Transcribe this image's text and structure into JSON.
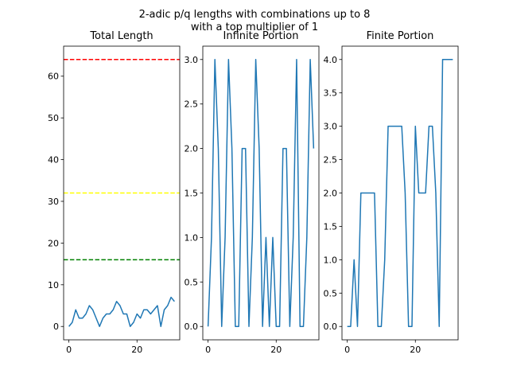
{
  "figure": {
    "title_lines": [
      "2-adic p/q lengths with combinations up to 8",
      "with a top multiplier of 1"
    ]
  },
  "chart_data": [
    {
      "type": "line",
      "title": "Total Length",
      "xlabel": "",
      "ylabel": "",
      "xlim": [
        -1.55,
        32.55
      ],
      "ylim": [
        -3.2,
        67.2
      ],
      "xticks": [
        0,
        20
      ],
      "yticks": [
        0,
        10,
        20,
        30,
        40,
        50,
        60
      ],
      "line_color": "#1f77b4",
      "x": [
        0,
        1,
        2,
        3,
        4,
        5,
        6,
        7,
        8,
        9,
        10,
        11,
        12,
        13,
        14,
        15,
        16,
        17,
        18,
        19,
        20,
        21,
        22,
        23,
        24,
        25,
        26,
        27,
        28,
        29,
        30,
        31
      ],
      "values": [
        0,
        1,
        4,
        2,
        2,
        3,
        5,
        4,
        2,
        0,
        2,
        3,
        3,
        4,
        6,
        5,
        3,
        3,
        0,
        1,
        3,
        2,
        4,
        4,
        3,
        4,
        5,
        0,
        4,
        5,
        7,
        6
      ],
      "hlines": [
        {
          "y": 64,
          "color": "#ff0000",
          "style": "dashed"
        },
        {
          "y": 32,
          "color": "#ffff00",
          "style": "dashed"
        },
        {
          "y": 16,
          "color": "#008000",
          "style": "dashed"
        }
      ],
      "grid": false
    },
    {
      "type": "line",
      "title": "Infinite Portion",
      "xlabel": "",
      "ylabel": "",
      "xlim": [
        -1.55,
        32.55
      ],
      "ylim": [
        -0.15,
        3.15
      ],
      "xticks": [
        0,
        20
      ],
      "yticks": [
        "0.0",
        "0.5",
        "1.0",
        "1.5",
        "2.0",
        "2.5",
        "3.0"
      ],
      "line_color": "#1f77b4",
      "x": [
        0,
        1,
        2,
        3,
        4,
        5,
        6,
        7,
        8,
        9,
        10,
        11,
        12,
        13,
        14,
        15,
        16,
        17,
        18,
        19,
        20,
        21,
        22,
        23,
        24,
        25,
        26,
        27,
        28,
        29,
        30,
        31
      ],
      "values": [
        0,
        1,
        3,
        2,
        0,
        1,
        3,
        2,
        0,
        0,
        2,
        2,
        0,
        1,
        3,
        2,
        0,
        1,
        0,
        1,
        0,
        0,
        2,
        2,
        0,
        1,
        3,
        0,
        0,
        1,
        3,
        2
      ],
      "grid": false
    },
    {
      "type": "line",
      "title": "Finite Portion",
      "xlabel": "",
      "ylabel": "",
      "xlim": [
        -1.55,
        32.55
      ],
      "ylim": [
        -0.2,
        4.2
      ],
      "xticks": [
        0,
        20
      ],
      "yticks": [
        "0.0",
        "0.5",
        "1.0",
        "1.5",
        "2.0",
        "2.5",
        "3.0",
        "3.5",
        "4.0"
      ],
      "line_color": "#1f77b4",
      "x": [
        0,
        1,
        2,
        3,
        4,
        5,
        6,
        7,
        8,
        9,
        10,
        11,
        12,
        13,
        14,
        15,
        16,
        17,
        18,
        19,
        20,
        21,
        22,
        23,
        24,
        25,
        26,
        27,
        28,
        29,
        30,
        31
      ],
      "values": [
        0,
        0,
        1,
        0,
        2,
        2,
        2,
        2,
        2,
        0,
        0,
        1,
        3,
        3,
        3,
        3,
        3,
        2,
        0,
        0,
        3,
        2,
        2,
        2,
        3,
        3,
        2,
        0,
        4,
        4,
        4,
        4
      ],
      "grid": false
    }
  ]
}
